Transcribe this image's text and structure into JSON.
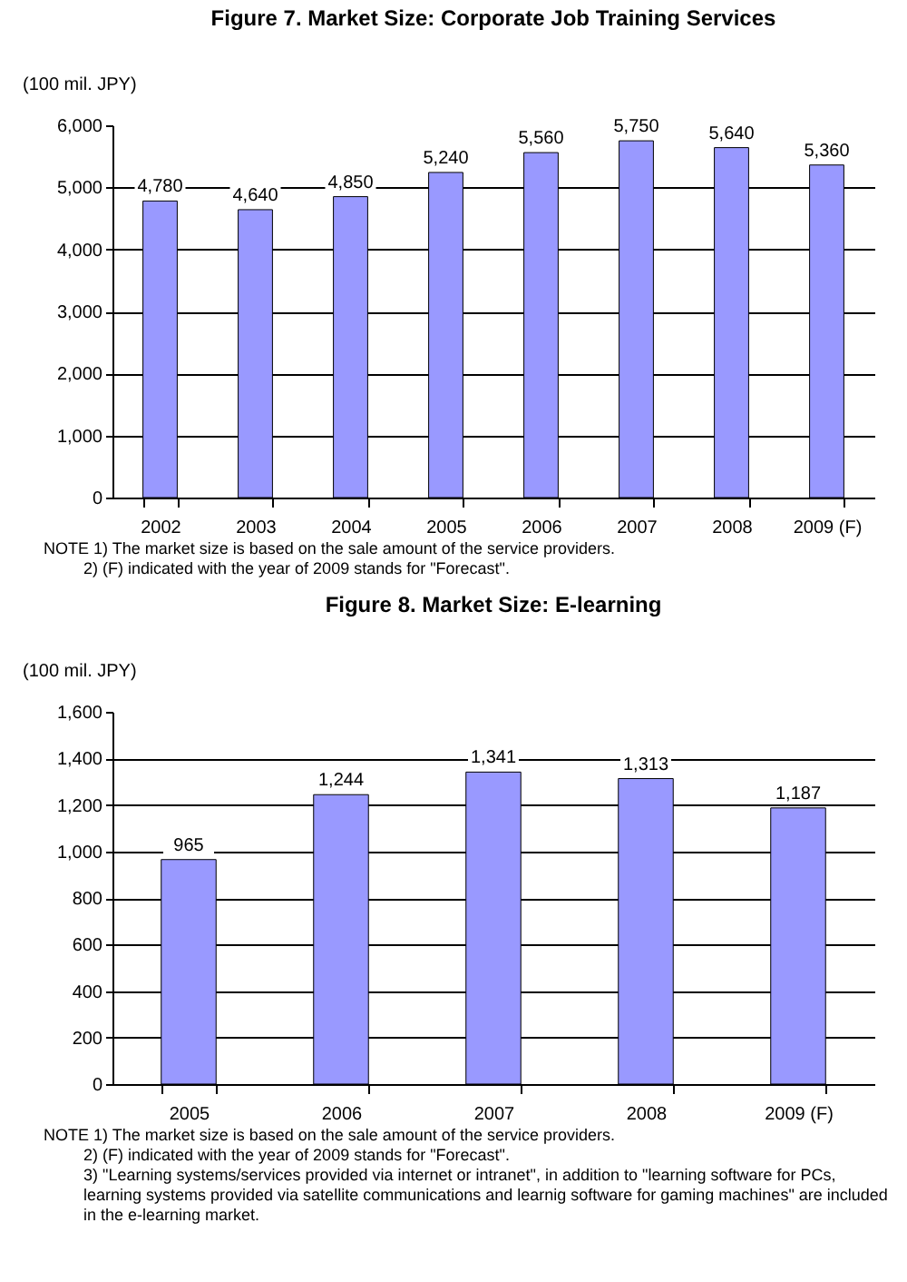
{
  "chart_data": [
    {
      "type": "bar",
      "title": "Figure 7. Market Size: Corporate Job Training Services",
      "ylabel": "(100 mil. JPY)",
      "categories": [
        "2002",
        "2003",
        "2004",
        "2005",
        "2006",
        "2007",
        "2008",
        "2009 (F)"
      ],
      "values": [
        4780,
        4640,
        4850,
        5240,
        5560,
        5750,
        5640,
        5360
      ],
      "color": "#9999ff",
      "value_labels": [
        "4,780",
        "4,640",
        "4,850",
        "5,240",
        "5,560",
        "5,750",
        "5,640",
        "5,360"
      ],
      "ylim": [
        0,
        6000
      ],
      "yticks": [
        0,
        {
          "value": 1000,
          "label": "1,000"
        },
        {
          "value": 2000,
          "label": "2,000"
        },
        {
          "value": 3000,
          "label": "3,000"
        },
        {
          "value": 4000,
          "label": "4,000"
        },
        {
          "value": 5000,
          "label": "5,000"
        },
        {
          "value": 6000,
          "label": "6,000"
        }
      ],
      "grid": "y",
      "annotations": [
        "NOTE 1) The market size is based on the sale amount of the service providers.",
        "2) (F) indicated with the year of 2009 stands for \"Forecast\"."
      ]
    },
    {
      "type": "bar",
      "title": "Figure 8. Market Size: E-learning",
      "ylabel": "(100 mil. JPY)",
      "categories": [
        "2005",
        "2006",
        "2007",
        "2008",
        "2009 (F)"
      ],
      "values": [
        965,
        1244,
        1341,
        1313,
        1187
      ],
      "color": "#9999ff",
      "value_labels": [
        "965",
        "1,244",
        "1,341",
        "1,313",
        "1,187"
      ],
      "ylim": [
        0,
        1600
      ],
      "yticks": [
        0,
        200,
        400,
        600,
        800,
        {
          "value": 1000,
          "label": "1,000"
        },
        {
          "value": 1200,
          "label": "1,200"
        },
        {
          "value": 1400,
          "label": "1,400"
        },
        {
          "value": 1600,
          "label": "1,600"
        }
      ],
      "grid": "y",
      "annotations": [
        "NOTE 1) The market size is based on the sale amount of the service providers.",
        "2) (F) indicated with the year of 2009 stands for \"Forecast\".",
        "3) \"Learning systems/services provided via internet or intranet\", in addition to \"learning software for PCs, learning systems provided via satellite communications and learnig software for gaming machines\" are included in the e-learning market."
      ]
    }
  ]
}
